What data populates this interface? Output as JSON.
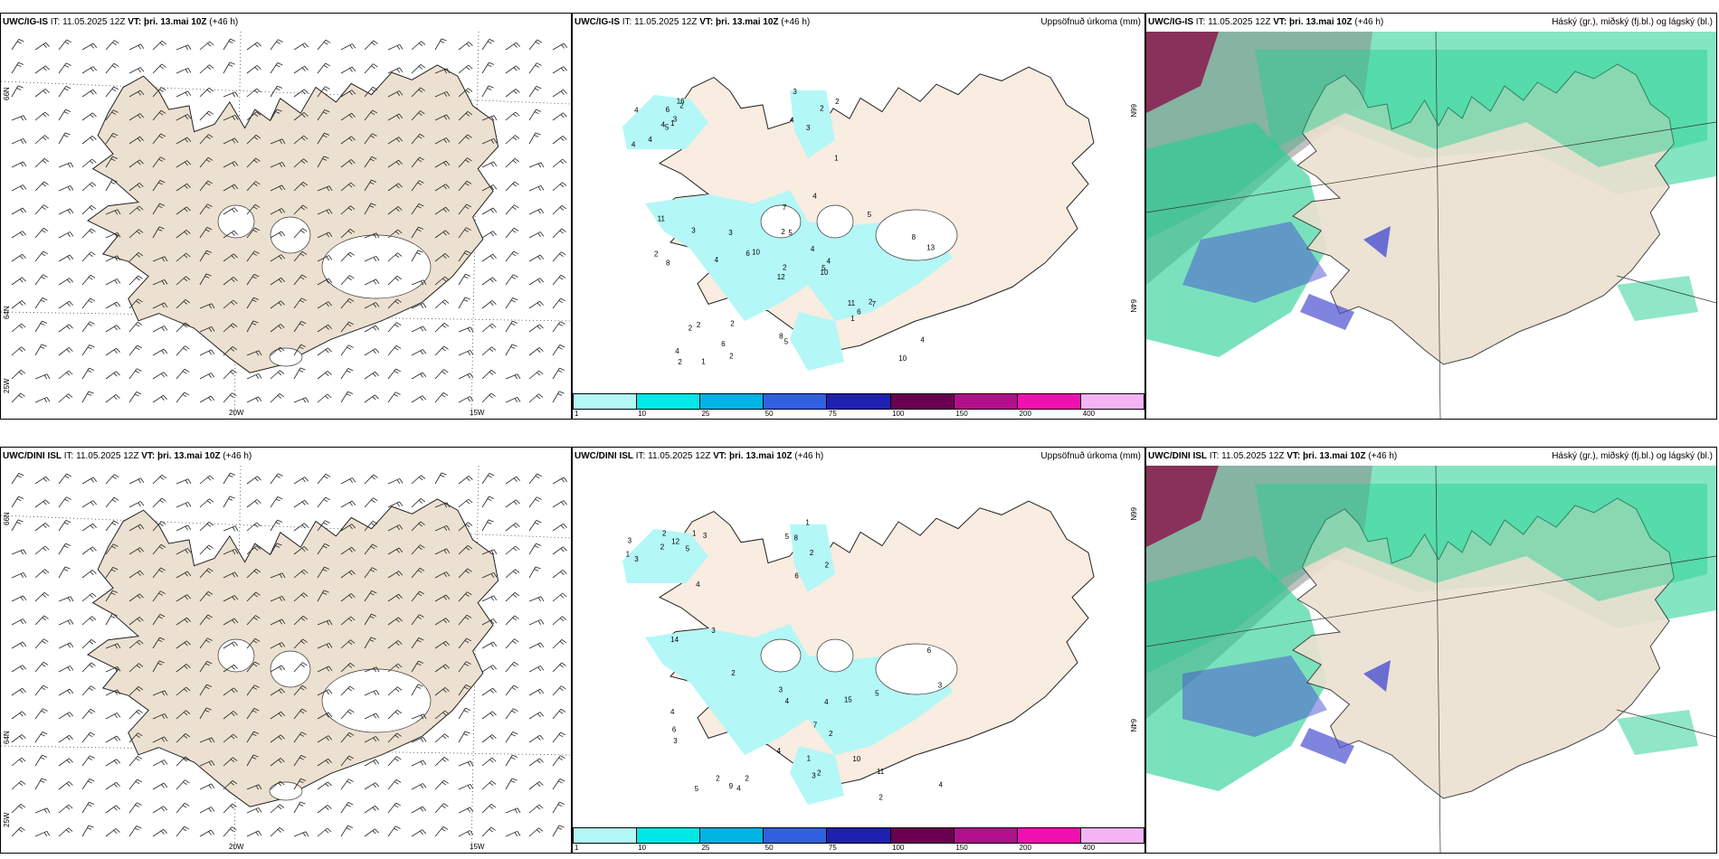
{
  "rows": [
    {
      "model": "UWC/IG-IS",
      "it_label": "IT:",
      "it_value": "11.05.2025 12Z",
      "vt_label": "VT:",
      "vt_value": "þri. 13.mai 10Z",
      "lead": "(+46 h)",
      "wind_lat_labels": [
        "66N",
        "64N"
      ],
      "wind_lon_labels": [
        "25W",
        "20W",
        "15W"
      ],
      "precip_lat_labels": [
        "66N",
        "64N"
      ],
      "precip_values": [
        "5",
        "4",
        "4",
        "4",
        "3",
        "4",
        "16",
        "6",
        "2",
        "1",
        "3",
        "1",
        "4",
        "2",
        "3",
        "2",
        "1",
        "2",
        "4",
        "2",
        "10",
        "4",
        "6",
        "5",
        "4",
        "7",
        "3",
        "7",
        "8",
        "11",
        "13",
        "12",
        "8",
        "2",
        "3",
        "5",
        "2",
        "10",
        "4",
        "2",
        "4",
        "6",
        "4",
        "1",
        "2",
        "2",
        "5",
        "2",
        "5",
        "10",
        "2",
        "8",
        "11",
        "6"
      ]
    },
    {
      "model": "UWC/DINI ISL",
      "it_label": "IT:",
      "it_value": "11.05.2025 12Z",
      "vt_label": "VT:",
      "vt_value": "þri. 13.mai 10Z",
      "lead": "(+46 h)",
      "wind_lat_labels": [
        "66N",
        "64N"
      ],
      "wind_lon_labels": [
        "25W",
        "20W",
        "15W"
      ],
      "precip_lat_labels": [
        "66N",
        "64N"
      ],
      "precip_values": [
        "1",
        "2",
        "5",
        "3",
        "3",
        "4",
        "3",
        "12",
        "2",
        "1",
        "2",
        "2",
        "1",
        "5",
        "8",
        "6",
        "2",
        "4",
        "7",
        "4",
        "10",
        "11",
        "6",
        "3",
        "2",
        "4",
        "2",
        "3",
        "4",
        "3",
        "6",
        "2",
        "4",
        "5",
        "9",
        "3",
        "5",
        "14",
        "2",
        "2",
        "1",
        "15",
        "4",
        "3"
      ]
    }
  ],
  "precip_header": "Uppsöfnuð úrkoma (mm)",
  "cloud_header": "Háský (gr.), miðský (fj.bl.) og lágský (bl.)",
  "colorbar": {
    "ticks": [
      "1",
      "10",
      "25",
      "50",
      "75",
      "100",
      "150",
      "200",
      "400"
    ],
    "colors": [
      "#b4f7f7",
      "#00e8e8",
      "#00b4e4",
      "#3060e0",
      "#2020b0",
      "#6a0050",
      "#b0108a",
      "#f010b0",
      "#f4b4f4"
    ]
  },
  "colors": {
    "land": "#ece0d0",
    "land_precip": "#f9ece0",
    "precip": "#b4f7f7",
    "high_cloud": "#8a8a8a",
    "mid_cloud": "#1fcf90",
    "low_cloud": "#4a50d0",
    "deep": "#8a1a4e"
  }
}
